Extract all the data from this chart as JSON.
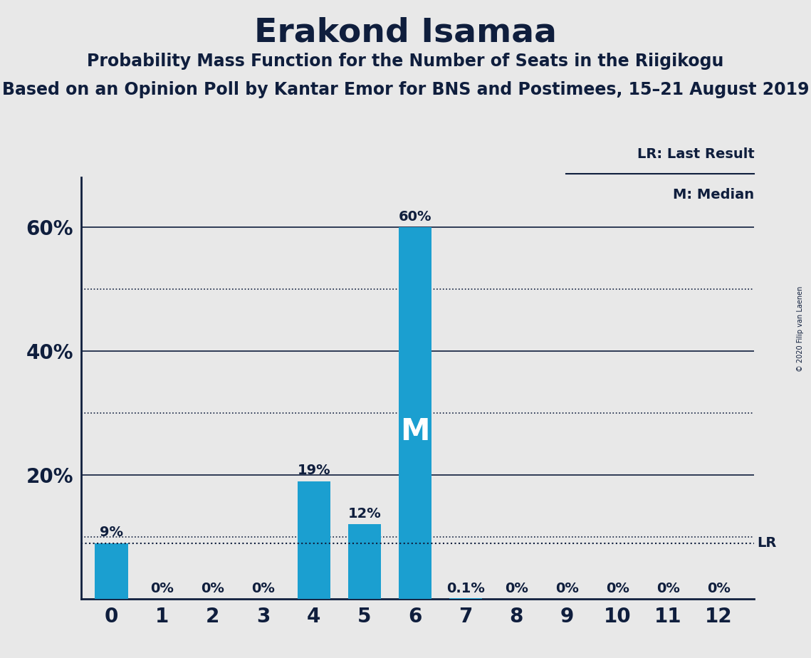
{
  "title": "Erakond Isamaa",
  "subtitle1": "Probability Mass Function for the Number of Seats in the Riigikogu",
  "subtitle2": "Based on an Opinion Poll by Kantar Emor for BNS and Postimees, 15–21 August 2019",
  "copyright": "© 2020 Filip van Laenen",
  "categories": [
    0,
    1,
    2,
    3,
    4,
    5,
    6,
    7,
    8,
    9,
    10,
    11,
    12
  ],
  "values": [
    0.09,
    0.0,
    0.0,
    0.0,
    0.19,
    0.12,
    0.6,
    0.001,
    0.0,
    0.0,
    0.0,
    0.0,
    0.0
  ],
  "labels": [
    "9%",
    "0%",
    "0%",
    "0%",
    "19%",
    "12%",
    "60%",
    "0.1%",
    "0%",
    "0%",
    "0%",
    "0%",
    "0%"
  ],
  "bar_color": "#1B9FD0",
  "median_seat": 6,
  "lr_value": 0.09,
  "background_color": "#E8E8E8",
  "title_fontsize": 34,
  "subtitle1_fontsize": 17,
  "subtitle2_fontsize": 17,
  "ylim_max": 0.68,
  "legend_lr_label": "LR: Last Result",
  "legend_m_label": "M: Median",
  "dark_color": "#0f1e3d",
  "solid_gridlines": [
    0.2,
    0.4,
    0.6
  ],
  "dotted_gridlines": [
    0.1,
    0.3,
    0.5
  ],
  "lr_line_dotted": true
}
